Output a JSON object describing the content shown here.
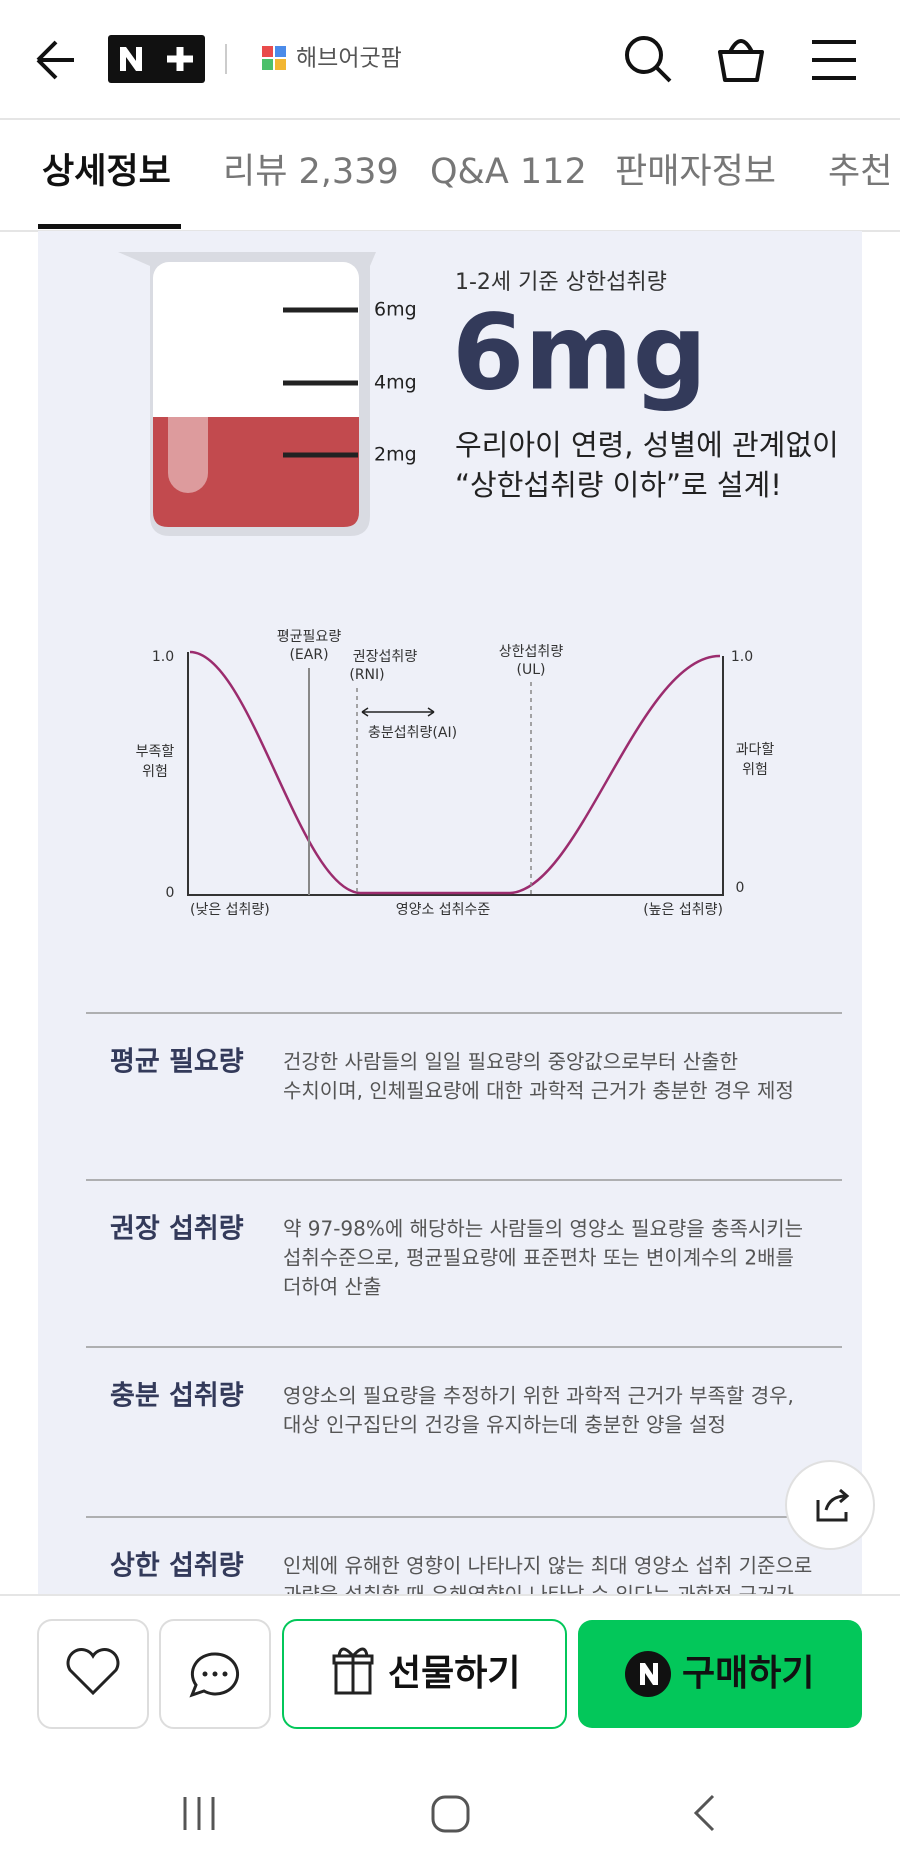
{
  "header": {
    "brand": "해브어굿팜"
  },
  "tabs": [
    "상세정보",
    "리뷰 2,339",
    "Q&A 112",
    "판매자정보",
    "추천"
  ],
  "hero": {
    "beaker_marks": [
      "6mg",
      "4mg",
      "2mg"
    ],
    "caption": "1-2세 기준 상한섭취량",
    "amount": "6mg",
    "lines": [
      "우리아이 연령, 성별에 관계없이",
      "“상한섭취량 이하”로 설계!"
    ]
  },
  "diagram": {
    "left_top": "1.0",
    "left_bottom": "0",
    "right_top": "1.0",
    "right_bottom": "0",
    "left_axis": [
      "부족할",
      "위험"
    ],
    "right_axis": [
      "과다할",
      "위험"
    ],
    "ear": [
      "평균필요량",
      "(EAR)"
    ],
    "rni": [
      "권장섭취량",
      "(RNI)"
    ],
    "ul": [
      "상한섭취량",
      "(UL)"
    ],
    "ai": "충분섭취량(AI)",
    "x_left": "(낮은 섭취량)",
    "x_center": "영양소 섭취수준",
    "x_right": "(높은 섭취량)"
  },
  "definitions": [
    {
      "term": "평균 필요량",
      "text": [
        "건강한 사람들의 일일 필요량의 중앙값으로부터 산출한",
        "수치이며, 인체필요량에 대한 과학적 근거가 충분한 경우 제정"
      ]
    },
    {
      "term": "권장 섭취량",
      "text": [
        "약 97-98%에 해당하는 사람들의 영양소 필요량을 충족시키는",
        "섭취수준으로, 평균필요량에 표준편차 또는 변이계수의 2배를",
        "더하여 산출"
      ]
    },
    {
      "term": "충분 섭취량",
      "text": [
        "영양소의 필요량을 추정하기 위한 과학적 근거가 부족할 경우,",
        "대상 인구집단의 건강을 유지하는데 충분한 양을 설정"
      ]
    },
    {
      "term": "상한 섭취량",
      "text": [
        "인체에 유해한 영향이 나타나지 않는 최대 영양소 섭취 기준으로",
        "과량을 섭취할 때 유해영향이 나타날 수 있다는 과학적 근거가"
      ]
    }
  ],
  "actions": {
    "gift": "선물하기",
    "buy": "구매하기"
  }
}
